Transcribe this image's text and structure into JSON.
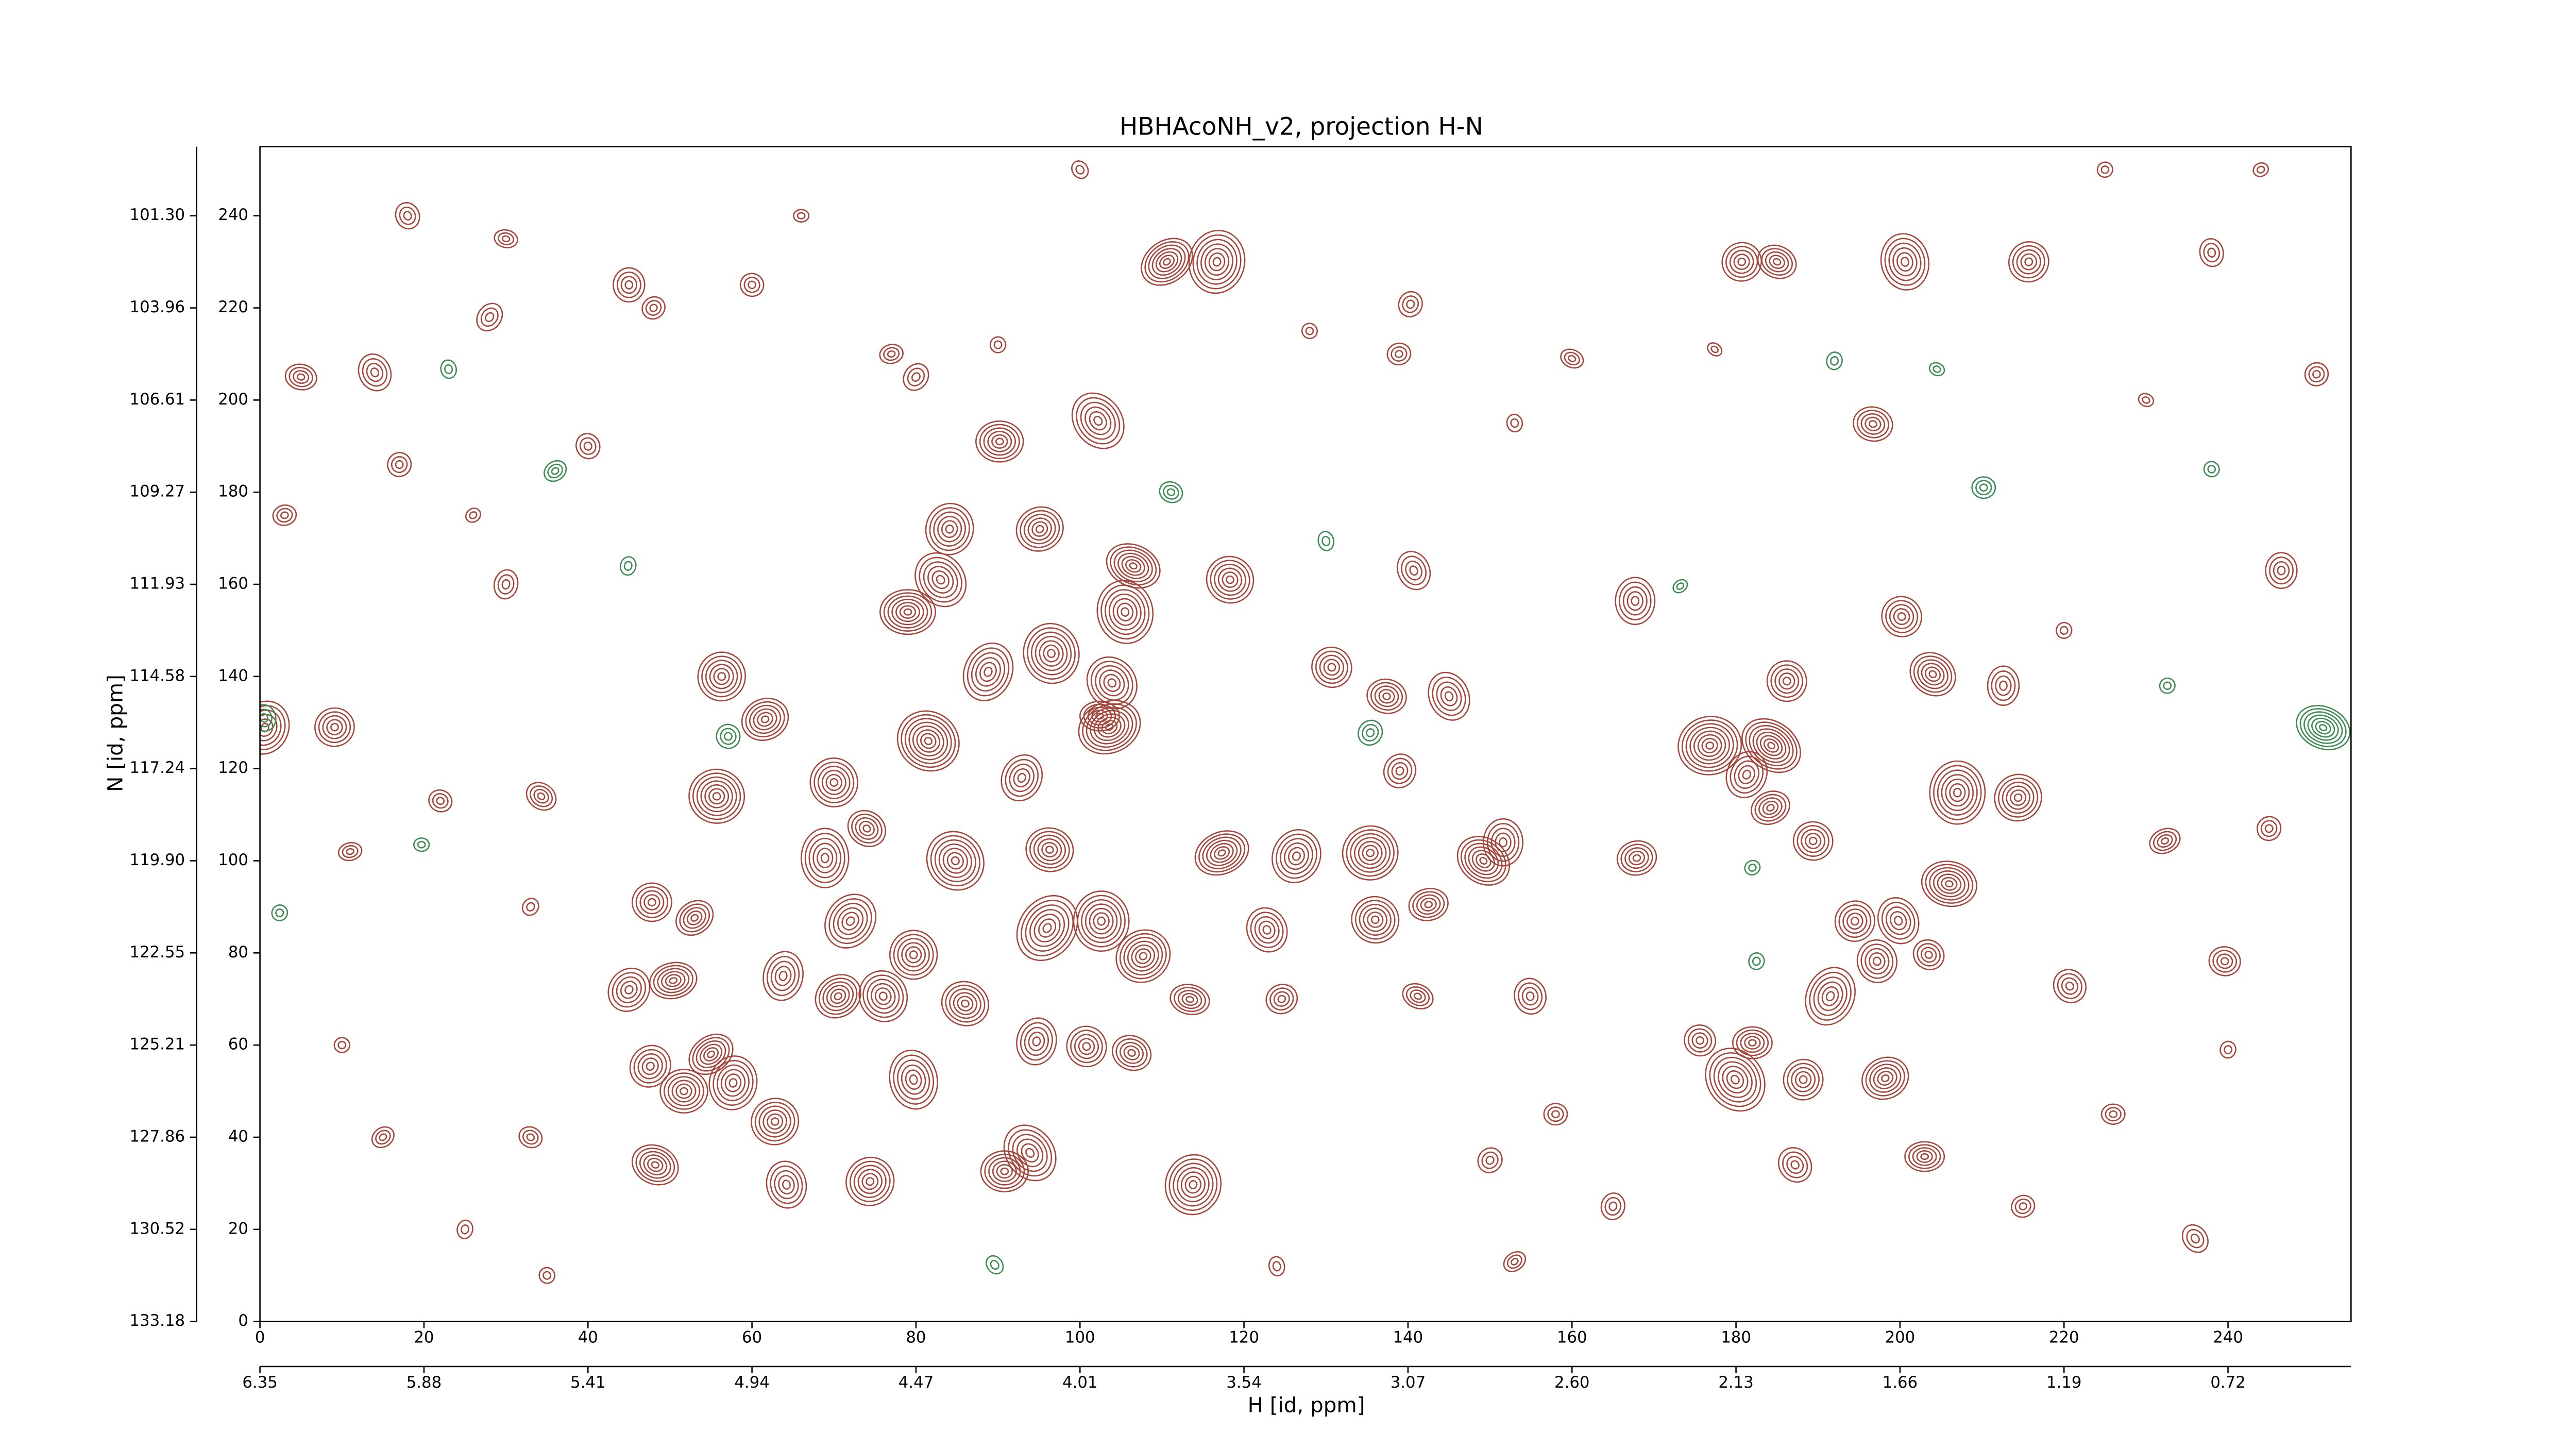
{
  "chart_data": {
    "type": "contour",
    "title": "HBHAcoNH_v2, projection H-N",
    "xlabel": "H [id, ppm]",
    "ylabel": "N [id, ppm]",
    "xlim": [
      0,
      255
    ],
    "ylim": [
      0,
      255
    ],
    "xticks": [
      0,
      20,
      40,
      60,
      80,
      100,
      120,
      140,
      160,
      180,
      200,
      220,
      240
    ],
    "yticks": [
      0,
      20,
      40,
      60,
      80,
      100,
      120,
      140,
      160,
      180,
      200,
      220,
      240
    ],
    "x2ticks": [
      {
        "value": 0,
        "label": "6.35"
      },
      {
        "value": 20,
        "label": "5.88"
      },
      {
        "value": 40,
        "label": "5.41"
      },
      {
        "value": 60,
        "label": "4.94"
      },
      {
        "value": 80,
        "label": "4.47"
      },
      {
        "value": 100,
        "label": "4.01"
      },
      {
        "value": 120,
        "label": "3.54"
      },
      {
        "value": 140,
        "label": "3.07"
      },
      {
        "value": 160,
        "label": "2.60"
      },
      {
        "value": 180,
        "label": "2.13"
      },
      {
        "value": 200,
        "label": "1.66"
      },
      {
        "value": 220,
        "label": "1.19"
      },
      {
        "value": 240,
        "label": "0.72"
      }
    ],
    "y2ticks": [
      {
        "value": 0,
        "label": "133.18"
      },
      {
        "value": 20,
        "label": "130.52"
      },
      {
        "value": 40,
        "label": "127.86"
      },
      {
        "value": 60,
        "label": "125.21"
      },
      {
        "value": 80,
        "label": "122.55"
      },
      {
        "value": 100,
        "label": "119.90"
      },
      {
        "value": 120,
        "label": "117.24"
      },
      {
        "value": 140,
        "label": "114.58"
      },
      {
        "value": 160,
        "label": "111.93"
      },
      {
        "value": 180,
        "label": "109.27"
      },
      {
        "value": 200,
        "label": "106.61"
      },
      {
        "value": 220,
        "label": "103.96"
      },
      {
        "value": 240,
        "label": "101.30"
      }
    ],
    "series": [
      {
        "color": "#a3473c",
        "x": [
          110.6,
          116.7,
          180.7,
          185,
          200.6,
          215.7,
          90.2,
          102.2,
          84.1,
          95.1,
          106.5,
          105.5,
          118.3,
          79,
          83,
          56.3,
          61.6,
          88.8,
          96.5,
          81.5,
          102.4,
          103.9,
          55.7,
          103.6,
          92.9,
          70,
          74,
          68.9,
          84.8,
          96.3,
          117.3,
          126.4,
          135.4,
          149.2,
          151.6,
          130.7,
          137.4,
          145,
          139,
          176.8,
          184.3,
          207,
          214.4,
          206,
          199.8,
          194.5,
          167.9,
          96,
          102.6,
          107.7,
          113.4,
          122.8,
          136,
          142.5,
          72,
          79.7,
          70.5,
          63.8,
          76,
          86,
          50.4,
          45,
          47.8,
          53,
          94.7,
          100.8,
          106.3,
          79.7,
          47.6,
          51.7,
          55,
          57.7,
          62.8,
          48.2,
          64.2,
          74.4,
          90.8,
          93.9,
          113.8,
          124.6,
          141.2,
          154.9,
          175.6,
          182,
          179.9,
          188.2,
          198.2,
          191.5,
          197.2,
          203.5,
          203,
          187.2,
          189.4,
          184.2,
          181.3,
          186.2,
          204,
          212.6,
          220.7,
          239.6,
          232.3,
          0.6,
          9.1,
          34.3,
          167.7,
          200.2,
          196.7,
          140.7,
          140.3,
          138.9,
          177.4,
          246.5,
          250.8,
          5,
          14,
          17,
          3,
          28,
          45,
          48,
          30,
          18,
          60,
          77,
          80,
          90,
          26,
          30,
          40,
          22,
          11,
          33,
          10,
          15,
          25,
          35,
          33,
          124,
          150,
          158,
          153,
          165,
          225,
          230,
          238,
          245,
          226,
          236,
          240,
          215,
          160,
          153,
          128,
          66,
          100,
          220,
          244
        ],
        "y": [
          230,
          230,
          230,
          230,
          230,
          230,
          191,
          195.5,
          172,
          172,
          164,
          154,
          161,
          154,
          161,
          140,
          130.7,
          141,
          145,
          126,
          131.4,
          138.6,
          114,
          129,
          118,
          117,
          107,
          100.6,
          100,
          102.4,
          101.7,
          101,
          101.7,
          100,
          104,
          142,
          135.7,
          135.7,
          119.5,
          125,
          125,
          114.8,
          113.7,
          95,
          87,
          86.9,
          100.6,
          85.4,
          86.9,
          79.3,
          69.9,
          85,
          87.2,
          90.5,
          86.9,
          79.6,
          70.6,
          75,
          70.6,
          69,
          74,
          72,
          91,
          87.6,
          60.8,
          59.7,
          58.3,
          52.5,
          55.4,
          50,
          58,
          51.8,
          43.4,
          34,
          29.7,
          30.4,
          32.6,
          36.6,
          29.7,
          70,
          70.6,
          70.6,
          61,
          60.5,
          52.5,
          52.5,
          52.8,
          70.6,
          78.2,
          79.6,
          35.8,
          34,
          104.3,
          111.5,
          118.7,
          139,
          140.5,
          138,
          72.8,
          78.2,
          104.3,
          128.9,
          129,
          114,
          156.4,
          153,
          194.8,
          163,
          220.8,
          210,
          211,
          163,
          205.6,
          205,
          206,
          186,
          175,
          218,
          225,
          220,
          235,
          240,
          225,
          210,
          205,
          212,
          175,
          160,
          190,
          113,
          102,
          90,
          60,
          40,
          20,
          10,
          40,
          12,
          35,
          45,
          13,
          25,
          250,
          200,
          232,
          107,
          45,
          18,
          59,
          25,
          209,
          195,
          215,
          240,
          250,
          150,
          250
        ],
        "levels": [
          7,
          7,
          5,
          5,
          6,
          5,
          6,
          6,
          6,
          6,
          7,
          7,
          6,
          7,
          6,
          6,
          6,
          6,
          7,
          8,
          5,
          6,
          7,
          8,
          5,
          6,
          5,
          6,
          7,
          6,
          7,
          6,
          7,
          7,
          5,
          5,
          5,
          5,
          4,
          8,
          8,
          7,
          6,
          7,
          5,
          5,
          5,
          7,
          7,
          7,
          5,
          5,
          6,
          5,
          6,
          6,
          6,
          5,
          6,
          6,
          6,
          5,
          5,
          5,
          5,
          5,
          5,
          6,
          5,
          6,
          6,
          6,
          6,
          6,
          5,
          6,
          6,
          6,
          7,
          4,
          4,
          4,
          4,
          5,
          7,
          5,
          6,
          6,
          5,
          4,
          5,
          4,
          5,
          5,
          5,
          5,
          6,
          4,
          4,
          4,
          4,
          6,
          5,
          4,
          5,
          5,
          5,
          4,
          3,
          3,
          2,
          4,
          3,
          4,
          4,
          3,
          3,
          3,
          4,
          3,
          3,
          3,
          3,
          3,
          3,
          2,
          2,
          3,
          3,
          3,
          3,
          2,
          2,
          3,
          2,
          2,
          3,
          2,
          3,
          3,
          3,
          3,
          2,
          2,
          3,
          3,
          3,
          3,
          2,
          3,
          3,
          2,
          2,
          2,
          2,
          2,
          2
        ]
      },
      {
        "color": "#3d8a55",
        "x": [
          36,
          44.9,
          57.1,
          111.1,
          130,
          135.4,
          210.2,
          173.2,
          192,
          232.6,
          204.5,
          23,
          2.4,
          19.7,
          89.6,
          182.5,
          182,
          251.6,
          0.5,
          238
        ],
        "y": [
          184.6,
          164,
          127,
          180,
          169.4,
          127.8,
          181,
          159.6,
          208.5,
          138,
          206.7,
          206.7,
          88.7,
          103.5,
          12.3,
          78.2,
          98.5,
          128.9,
          131,
          185
        ],
        "levels": [
          3,
          2,
          3,
          3,
          2,
          3,
          3,
          2,
          2,
          2,
          2,
          2,
          2,
          2,
          2,
          2,
          2,
          7,
          3,
          2
        ]
      }
    ]
  }
}
